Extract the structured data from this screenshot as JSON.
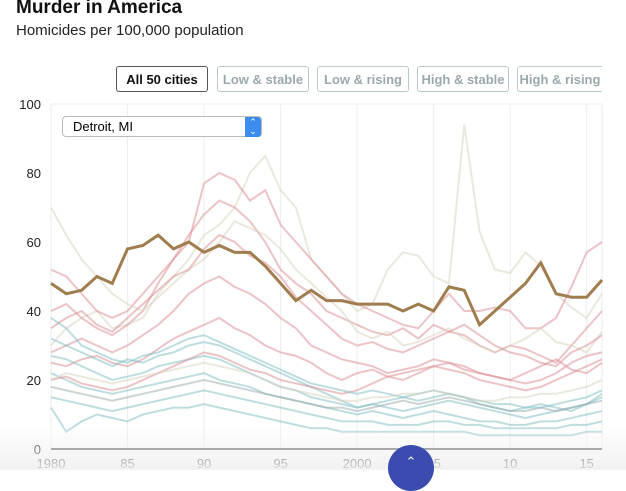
{
  "header": {
    "title": "Murder in America",
    "subtitle": "Homicides per 100,000 population"
  },
  "filters": [
    {
      "label": "All 50 cities",
      "active": true
    },
    {
      "label": "Low & stable"
    },
    {
      "label": "Low & rising"
    },
    {
      "label": "High & stable"
    },
    {
      "label": "High & rising"
    }
  ],
  "city_select": {
    "value": "Detroit, MI"
  },
  "colors": {
    "highlight": "#a07d4e",
    "red": "#d98a8e",
    "teal": "#7dbcc4",
    "beige": "#d8d1bd",
    "grey": "#9aa"
  },
  "chart_data": {
    "type": "line",
    "title": "Murder in America",
    "ylabel": "Homicides per 100,000 population",
    "xlim": [
      1980,
      2016
    ],
    "ylim": [
      0,
      100
    ],
    "yticks": [
      0,
      20,
      40,
      60,
      80,
      100
    ],
    "xticks": [
      {
        "v": 1980,
        "l": "1980"
      },
      {
        "v": 1985,
        "l": "85"
      },
      {
        "v": 1990,
        "l": "90"
      },
      {
        "v": 1995,
        "l": "95"
      },
      {
        "v": 2000,
        "l": "2000"
      },
      {
        "v": 2005,
        "l": "05"
      },
      {
        "v": 2010,
        "l": "10"
      },
      {
        "v": 2015,
        "l": "15"
      }
    ],
    "highlight": {
      "name": "Detroit, MI",
      "values": [
        48,
        45,
        46,
        50,
        48,
        58,
        59,
        62,
        58,
        60,
        57,
        59,
        57,
        57,
        53,
        48,
        43,
        46,
        43,
        43,
        42,
        42,
        42,
        40,
        42,
        40,
        47,
        46,
        36,
        40,
        44,
        48,
        54,
        45,
        44,
        44,
        49
      ]
    },
    "series": [
      {
        "color": "beige",
        "values": [
          30,
          35,
          38,
          40,
          35,
          36,
          38,
          45,
          50,
          55,
          62,
          65,
          70,
          80,
          85,
          75,
          70,
          55,
          50,
          45,
          40,
          42,
          52,
          57,
          56,
          50,
          48,
          94,
          63,
          52,
          51,
          57,
          53,
          45,
          41,
          38,
          45
        ]
      },
      {
        "color": "red",
        "values": [
          52,
          50,
          45,
          40,
          38,
          40,
          45,
          50,
          55,
          60,
          77,
          80,
          78,
          72,
          75,
          65,
          60,
          55,
          50,
          45,
          42,
          40,
          38,
          36,
          35,
          40,
          45,
          40,
          40,
          41,
          40,
          35,
          35,
          38,
          47,
          57,
          60
        ]
      },
      {
        "color": "red",
        "values": [
          40,
          42,
          38,
          35,
          33,
          36,
          40,
          48,
          55,
          62,
          68,
          72,
          70,
          66,
          60,
          52,
          48,
          45,
          40,
          38,
          36,
          34,
          33,
          35,
          32,
          36,
          34,
          33,
          30,
          28,
          30,
          29,
          27,
          25,
          30,
          35,
          40
        ]
      },
      {
        "color": "beige",
        "values": [
          70,
          62,
          55,
          50,
          45,
          42,
          40,
          44,
          48,
          52,
          55,
          60,
          66,
          64,
          62,
          58,
          52,
          48,
          44,
          40,
          34,
          32,
          34,
          30,
          31,
          33,
          35,
          32,
          30,
          28,
          30,
          32,
          35,
          31,
          30,
          28,
          34
        ]
      },
      {
        "color": "red",
        "values": [
          35,
          38,
          40,
          36,
          34,
          38,
          42,
          46,
          50,
          52,
          58,
          62,
          60,
          56,
          54,
          50,
          44,
          40,
          36,
          32,
          30,
          31,
          29,
          28,
          30,
          32,
          34,
          36,
          33,
          30,
          28,
          27,
          25,
          24,
          28,
          30,
          33
        ]
      },
      {
        "color": "red",
        "values": [
          28,
          30,
          32,
          30,
          28,
          30,
          33,
          36,
          40,
          45,
          48,
          50,
          47,
          45,
          42,
          38,
          35,
          30,
          28,
          26,
          25,
          24,
          22,
          23,
          24,
          26,
          25,
          24,
          22,
          21,
          20,
          19,
          20,
          22,
          25,
          27,
          28
        ]
      },
      {
        "color": "red",
        "values": [
          25,
          24,
          26,
          27,
          25,
          24,
          26,
          29,
          32,
          34,
          36,
          38,
          35,
          33,
          30,
          28,
          27,
          25,
          22,
          20,
          22,
          23,
          21,
          20,
          22,
          24,
          23,
          22,
          20,
          19,
          18,
          17,
          18,
          20,
          22,
          24,
          26
        ]
      },
      {
        "color": "teal",
        "values": [
          32,
          30,
          28,
          26,
          24,
          26,
          25,
          27,
          28,
          30,
          31,
          30,
          28,
          26,
          24,
          22,
          20,
          18,
          16,
          14,
          12,
          13,
          12,
          11,
          12,
          13,
          14,
          13,
          12,
          11,
          10,
          9,
          10,
          11,
          12,
          13,
          15
        ]
      },
      {
        "color": "teal",
        "values": [
          22,
          20,
          18,
          17,
          16,
          17,
          18,
          19,
          20,
          21,
          22,
          20,
          19,
          18,
          16,
          15,
          14,
          13,
          12,
          11,
          10,
          11,
          10,
          9,
          10,
          11,
          10,
          9,
          8,
          8,
          7,
          7,
          8,
          8,
          9,
          10,
          11
        ]
      },
      {
        "color": "teal",
        "values": [
          15,
          14,
          13,
          12,
          11,
          12,
          13,
          14,
          15,
          16,
          17,
          16,
          15,
          14,
          13,
          12,
          11,
          10,
          9,
          8,
          8,
          8,
          7,
          7,
          7,
          8,
          8,
          7,
          7,
          6,
          6,
          6,
          6,
          6,
          7,
          7,
          8
        ]
      },
      {
        "color": "teal",
        "values": [
          12,
          5,
          8,
          10,
          9,
          8,
          10,
          11,
          12,
          12,
          13,
          12,
          11,
          10,
          9,
          8,
          7,
          6,
          6,
          5,
          5,
          5,
          5,
          5,
          5,
          5,
          5,
          5,
          4,
          4,
          4,
          4,
          4,
          4,
          4,
          5,
          5
        ]
      },
      {
        "color": "teal",
        "values": [
          27,
          26,
          24,
          22,
          20,
          21,
          22,
          24,
          25,
          26,
          27,
          26,
          24,
          22,
          20,
          18,
          17,
          15,
          14,
          13,
          12,
          13,
          14,
          15,
          14,
          15,
          16,
          15,
          13,
          12,
          11,
          12,
          13,
          12,
          11,
          13,
          16
        ]
      },
      {
        "color": "grey",
        "values": [
          18,
          17,
          16,
          15,
          14,
          15,
          16,
          17,
          18,
          19,
          20,
          19,
          18,
          17,
          16,
          15,
          14,
          13,
          12,
          12,
          11,
          12,
          13,
          14,
          13,
          14,
          15,
          14,
          13,
          12,
          11,
          11,
          12,
          11,
          12,
          13,
          14
        ]
      },
      {
        "color": "red",
        "values": [
          20,
          21,
          19,
          18,
          17,
          18,
          20,
          22,
          24,
          26,
          28,
          27,
          25,
          23,
          22,
          20,
          19,
          18,
          17,
          16,
          17,
          19,
          21,
          22,
          23,
          24,
          25,
          23,
          22,
          21,
          20,
          22,
          24,
          26,
          23,
          22,
          25
        ]
      },
      {
        "color": "teal",
        "values": [
          38,
          35,
          30,
          28,
          26,
          25,
          27,
          28,
          30,
          32,
          33,
          31,
          29,
          27,
          25,
          23,
          21,
          19,
          18,
          17,
          16,
          17,
          16,
          15,
          16,
          17,
          16,
          15,
          14,
          13,
          13,
          12,
          12,
          13,
          14,
          15,
          17
        ]
      },
      {
        "color": "beige",
        "values": [
          20,
          22,
          21,
          20,
          19,
          20,
          21,
          22,
          23,
          24,
          25,
          24,
          23,
          22,
          20,
          18,
          17,
          16,
          15,
          14,
          14,
          15,
          15,
          16,
          16,
          17,
          16,
          15,
          14,
          14,
          15,
          15,
          16,
          16,
          17,
          18,
          20
        ]
      }
    ]
  }
}
